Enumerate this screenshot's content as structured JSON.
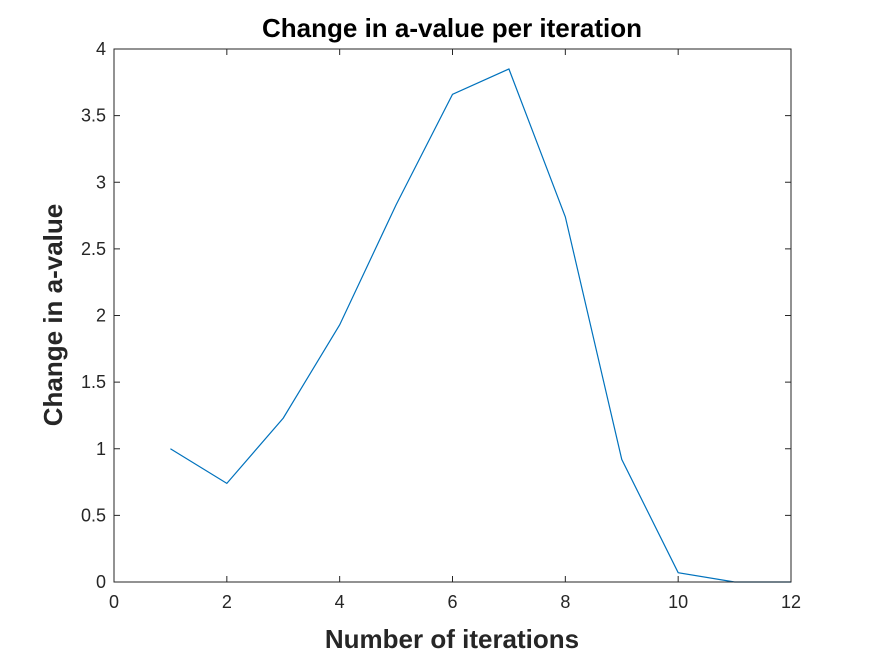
{
  "chart_data": {
    "type": "line",
    "title": "Change in a-value per iteration",
    "xlabel": "Number of iterations",
    "ylabel": "Change in a-value",
    "xlim": [
      0,
      12
    ],
    "ylim": [
      0,
      4
    ],
    "xticks": [
      0,
      2,
      4,
      6,
      8,
      10,
      12
    ],
    "yticks": [
      0,
      0.5,
      1,
      1.5,
      2,
      2.5,
      3,
      3.5,
      4
    ],
    "x": [
      1,
      2,
      3,
      4,
      5,
      6,
      7,
      8,
      9,
      10,
      11,
      12
    ],
    "series": [
      {
        "values": [
          1.0,
          0.74,
          1.23,
          1.93,
          2.83,
          3.66,
          3.85,
          2.74,
          0.92,
          0.07,
          0.0,
          0.0
        ],
        "color": "#0072bd"
      }
    ],
    "grid": false,
    "legend": "none"
  }
}
